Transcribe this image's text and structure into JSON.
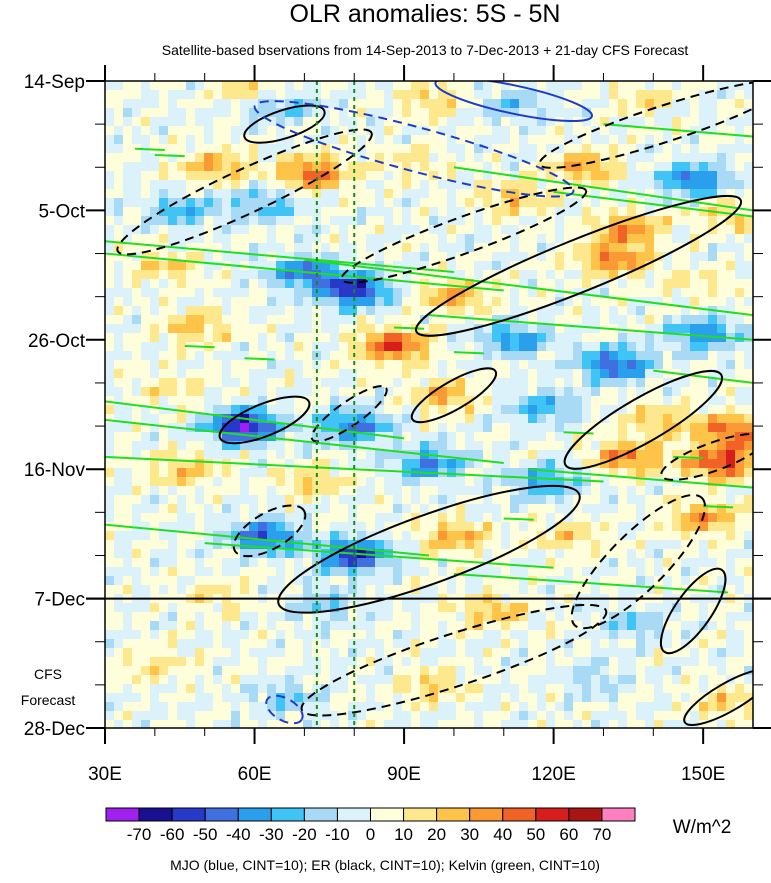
{
  "chart_data": {
    "type": "heatmap",
    "title": "OLR anomalies: 5S - 5N",
    "subtitle": "Satellite-based bservations from 14-Sep-2013 to 7-Dec-2013 + 21-day CFS Forecast",
    "x_axis": {
      "label": "",
      "range": [
        30,
        160
      ],
      "ticks": [
        {
          "value": 30,
          "label": "30E"
        },
        {
          "value": 60,
          "label": "60E"
        },
        {
          "value": 90,
          "label": "90E"
        },
        {
          "value": 120,
          "label": "120E"
        },
        {
          "value": 150,
          "label": "150E"
        }
      ]
    },
    "y_axis": {
      "label": "",
      "range_days": [
        0,
        105
      ],
      "ticks": [
        {
          "day": 0,
          "label": "14-Sep"
        },
        {
          "day": 21,
          "label": "5-Oct"
        },
        {
          "day": 42,
          "label": "26-Oct"
        },
        {
          "day": 63,
          "label": "16-Nov"
        },
        {
          "day": 84,
          "label": "7-Dec"
        },
        {
          "day": 105,
          "label": "28-Dec"
        }
      ]
    },
    "forecast_start_day": 84,
    "forecast_label_line1": "CFS",
    "forecast_label_line2": "Forecast",
    "reference_longitudes": [
      72.5,
      80
    ],
    "colorbar": {
      "unit": "W/m^2",
      "levels": [
        -70,
        -60,
        -50,
        -40,
        -30,
        -20,
        -10,
        0,
        10,
        20,
        30,
        40,
        50,
        60,
        70
      ],
      "colors": [
        "#a020f0",
        "#1a0f91",
        "#2838c8",
        "#4070e0",
        "#2aa0ec",
        "#40c4f6",
        "#a8daf6",
        "#dcf2fb",
        "#fefedb",
        "#fee88e",
        "#fec44a",
        "#fb9934",
        "#f06225",
        "#d81d1d",
        "#aa1414",
        "#ff80c0"
      ]
    },
    "legend_text": "MJO (blue, CINT=10); ER (black, CINT=10); Kelvin (green, CINT=10)",
    "contour_series": [
      {
        "name": "MJO",
        "color": "#1f3cc8",
        "cint": 10
      },
      {
        "name": "ER",
        "color": "#000000",
        "cint": 10
      },
      {
        "name": "Kelvin",
        "color": "#22dd22",
        "cint": 10
      }
    ],
    "anomaly_features": [
      {
        "lon": 60,
        "day": 2,
        "value": 25
      },
      {
        "lon": 64,
        "day": 4,
        "value": -30
      },
      {
        "lon": 95,
        "day": 3,
        "value": 20
      },
      {
        "lon": 112,
        "day": 4,
        "value": -20
      },
      {
        "lon": 138,
        "day": 3,
        "value": 15
      },
      {
        "lon": 52,
        "day": 14,
        "value": 30
      },
      {
        "lon": 72,
        "day": 15,
        "value": 45
      },
      {
        "lon": 92,
        "day": 13,
        "value": 15
      },
      {
        "lon": 126,
        "day": 14,
        "value": 30
      },
      {
        "lon": 148,
        "day": 16,
        "value": -45
      },
      {
        "lon": 45,
        "day": 21,
        "value": -30
      },
      {
        "lon": 62,
        "day": 20,
        "value": -25
      },
      {
        "lon": 112,
        "day": 19,
        "value": 25
      },
      {
        "lon": 135,
        "day": 24,
        "value": 35
      },
      {
        "lon": 155,
        "day": 22,
        "value": 20
      },
      {
        "lon": 42,
        "day": 30,
        "value": 20
      },
      {
        "lon": 70,
        "day": 31,
        "value": -45
      },
      {
        "lon": 80,
        "day": 34,
        "value": -60
      },
      {
        "lon": 100,
        "day": 35,
        "value": 30
      },
      {
        "lon": 132,
        "day": 29,
        "value": 40
      },
      {
        "lon": 150,
        "day": 33,
        "value": 15
      },
      {
        "lon": 48,
        "day": 40,
        "value": 25
      },
      {
        "lon": 88,
        "day": 43,
        "value": 50
      },
      {
        "lon": 112,
        "day": 42,
        "value": -35
      },
      {
        "lon": 132,
        "day": 46,
        "value": -50
      },
      {
        "lon": 150,
        "day": 41,
        "value": -40
      },
      {
        "lon": 44,
        "day": 50,
        "value": 15
      },
      {
        "lon": 58,
        "day": 56,
        "value": -70
      },
      {
        "lon": 80,
        "day": 56,
        "value": -45
      },
      {
        "lon": 98,
        "day": 51,
        "value": 30
      },
      {
        "lon": 118,
        "day": 53,
        "value": -30
      },
      {
        "lon": 142,
        "day": 55,
        "value": 25
      },
      {
        "lon": 156,
        "day": 57,
        "value": 45
      },
      {
        "lon": 46,
        "day": 63,
        "value": 25
      },
      {
        "lon": 72,
        "day": 65,
        "value": 20
      },
      {
        "lon": 95,
        "day": 62,
        "value": -40
      },
      {
        "lon": 118,
        "day": 65,
        "value": -35
      },
      {
        "lon": 135,
        "day": 61,
        "value": 40
      },
      {
        "lon": 154,
        "day": 62,
        "value": 55
      },
      {
        "lon": 62,
        "day": 74,
        "value": -50
      },
      {
        "lon": 80,
        "day": 77,
        "value": -60
      },
      {
        "lon": 100,
        "day": 74,
        "value": 30
      },
      {
        "lon": 124,
        "day": 74,
        "value": 20
      },
      {
        "lon": 150,
        "day": 71,
        "value": 35
      },
      {
        "lon": 52,
        "day": 84,
        "value": 15
      },
      {
        "lon": 74,
        "day": 85,
        "value": -20
      },
      {
        "lon": 108,
        "day": 86,
        "value": 25
      },
      {
        "lon": 136,
        "day": 88,
        "value": -20
      },
      {
        "lon": 40,
        "day": 95,
        "value": 15
      },
      {
        "lon": 66,
        "day": 100,
        "value": -20
      },
      {
        "lon": 96,
        "day": 98,
        "value": 20
      },
      {
        "lon": 128,
        "day": 97,
        "value": -15
      },
      {
        "lon": 155,
        "day": 101,
        "value": 20
      }
    ]
  }
}
